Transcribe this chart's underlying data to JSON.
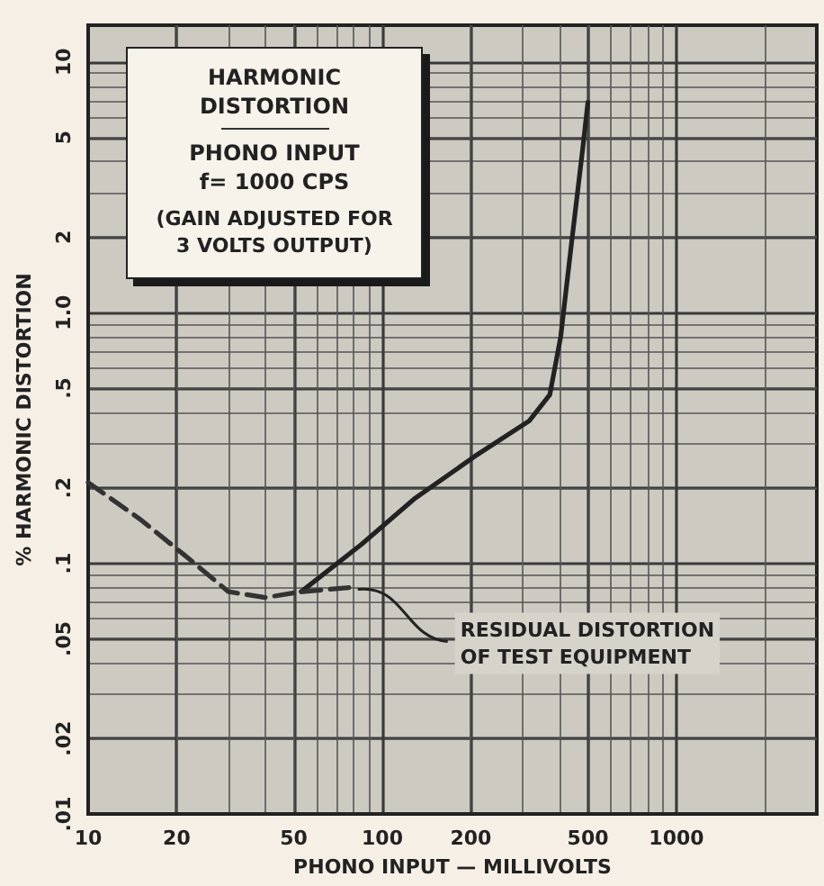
{
  "chart_data": {
    "type": "line",
    "title": "HARMONIC DISTORTION",
    "subtitle": "PHONO INPUT\nf= 1000 CPS",
    "xlabel": "PHONO INPUT — MILLIVOLTS",
    "ylabel": "% HARMONIC DISTORTION",
    "log": "xy",
    "grid": true,
    "marker": "none",
    "xlim": [
      10,
      3000
    ],
    "xticks": [
      10,
      20,
      50,
      100,
      200,
      500,
      {
        "value": 1000,
        "label": "1000"
      }
    ],
    "ylim": [
      0.01,
      14
    ],
    "yticks": [
      {
        "value": 0.01,
        "label": ".01"
      },
      {
        "value": 0.02,
        "label": ".02"
      },
      {
        "value": 0.05,
        "label": ".05"
      },
      {
        "value": 0.1,
        "label": ".1"
      },
      {
        "value": 0.2,
        "label": ".2"
      },
      {
        "value": 0.5,
        "label": ".5"
      },
      {
        "value": 1,
        "label": "1.0"
      },
      2,
      5,
      10
    ],
    "series": [
      {
        "color": "#222222",
        "line_style": "solid",
        "x": [
          53,
          85,
          128,
          209,
          316,
          371,
          404,
          440,
          480,
          500
        ],
        "values": [
          0.077,
          0.119,
          0.18,
          0.27,
          0.37,
          0.47,
          0.8,
          1.9,
          4.5,
          6.9
        ]
      },
      {
        "color": "#333333",
        "line_style": "dashed",
        "x": [
          10,
          15,
          21,
          30,
          40,
          53,
          78
        ],
        "values": [
          0.21,
          0.15,
          0.109,
          0.077,
          0.073,
          0.077,
          0.08
        ]
      }
    ],
    "annotations": [
      "(GAIN ADJUSTED FOR\n3 VOLTS OUTPUT)",
      {
        "text": "RESIDUAL DISTORTION\nOF TEST EQUIPMENT",
        "x": 78,
        "y": 0.08
      }
    ]
  }
}
